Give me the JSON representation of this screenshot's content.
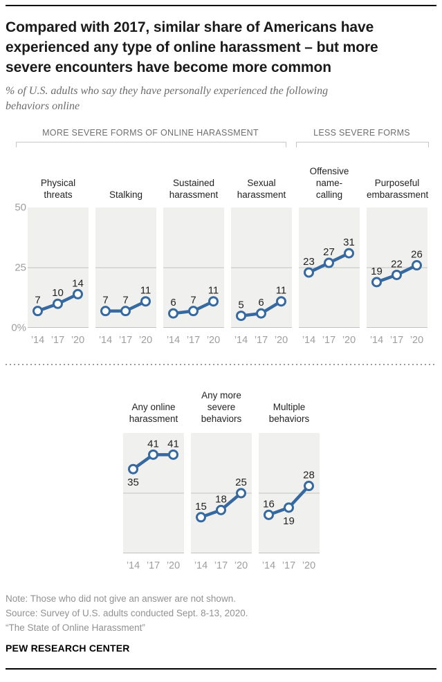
{
  "header": {
    "title_lines": [
      "Compared with 2017, similar share of Americans have",
      "experienced any type of online harassment – but more",
      "severe encounters have become more common"
    ],
    "subtitle_lines": [
      "% of U.S. adults who say they have personally experienced the following",
      "behaviors online"
    ]
  },
  "groups": {
    "more_severe_label": "MORE SEVERE FORMS OF ONLINE HARASSMENT",
    "less_severe_label": "LESS SEVERE FORMS"
  },
  "chart_data": {
    "type": "line",
    "x": [
      "’14",
      "’17",
      "’20"
    ],
    "ylim": [
      0,
      50
    ],
    "yticks": [
      "50",
      "25",
      "0%"
    ],
    "gridlines": [
      25,
      0
    ],
    "line_color": "#35699f",
    "point_fill": "#ffffff",
    "plot_bg": "#f0f0ef",
    "gridline_color": "#c2c2c2",
    "top_row": [
      {
        "id": "physical-threats",
        "label_lines": [
          "Physical",
          "threats"
        ],
        "values": [
          7,
          10,
          14
        ],
        "label_pos": [
          "above",
          "above",
          "above"
        ]
      },
      {
        "id": "stalking",
        "label_lines": [
          "Stalking"
        ],
        "values": [
          7,
          7,
          11
        ],
        "label_pos": [
          "above",
          "above",
          "above"
        ]
      },
      {
        "id": "sustained-harassment",
        "label_lines": [
          "Sustained",
          "harassment"
        ],
        "values": [
          6,
          7,
          11
        ],
        "label_pos": [
          "above",
          "above",
          "above"
        ]
      },
      {
        "id": "sexual-harassment",
        "label_lines": [
          "Sexual",
          "harassment"
        ],
        "values": [
          5,
          6,
          11
        ],
        "label_pos": [
          "above",
          "above",
          "above"
        ]
      },
      {
        "id": "offensive-name-calling",
        "label_lines": [
          "Offensive",
          "name-",
          "calling"
        ],
        "values": [
          23,
          27,
          31
        ],
        "label_pos": [
          "above",
          "above",
          "above"
        ]
      },
      {
        "id": "purposeful-embarassment",
        "label_lines": [
          "Purposeful",
          "embarassment"
        ],
        "values": [
          19,
          22,
          26
        ],
        "label_pos": [
          "above",
          "above",
          "above"
        ]
      }
    ],
    "bottom_row": [
      {
        "id": "any-online-harassment",
        "label_lines": [
          "Any online",
          "harassment"
        ],
        "values": [
          35,
          41,
          41
        ],
        "label_pos": [
          "below",
          "above",
          "above"
        ]
      },
      {
        "id": "any-more-severe-behaviors",
        "label_lines": [
          "Any more",
          "severe",
          "behaviors"
        ],
        "values": [
          15,
          18,
          25
        ],
        "label_pos": [
          "above",
          "above",
          "above"
        ]
      },
      {
        "id": "multiple-behaviors",
        "label_lines": [
          "Multiple",
          "behaviors"
        ],
        "values": [
          16,
          19,
          28
        ],
        "label_pos": [
          "above",
          "below",
          "above"
        ]
      }
    ]
  },
  "footer": {
    "note": "Note: Those who did not give an answer are not shown.",
    "source": "Source: Survey of U.S. adults conducted Sept. 8-13, 2020.",
    "report": "“The State of Online Harassment”",
    "brand": "PEW RESEARCH CENTER"
  }
}
